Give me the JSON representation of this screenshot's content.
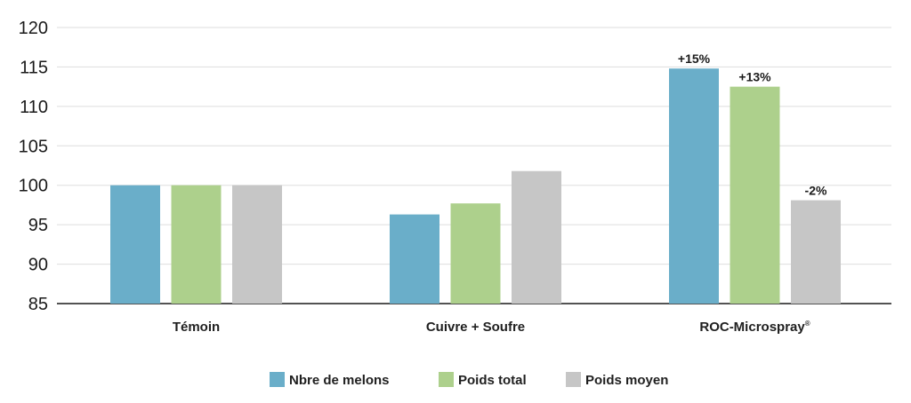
{
  "chart_data": {
    "type": "bar",
    "title": "",
    "xlabel": "",
    "ylabel": "",
    "categories": [
      "Témoin",
      "Cuivre + Soufre",
      "ROC-Microspray"
    ],
    "category_superscripts": [
      "",
      "",
      "®"
    ],
    "ylim": [
      85,
      120
    ],
    "yticks": [
      85,
      90,
      95,
      100,
      105,
      110,
      115,
      120
    ],
    "grid": true,
    "legend_position": "bottom",
    "series": [
      {
        "name": "Nbre de melons",
        "color": "#6aaec9",
        "values": [
          100,
          96.3,
          114.8
        ],
        "labels": [
          "",
          "",
          "+15%"
        ]
      },
      {
        "name": "Poids total",
        "color": "#add08c",
        "values": [
          100,
          97.7,
          112.5
        ],
        "labels": [
          "",
          "",
          "+13%"
        ]
      },
      {
        "name": "Poids moyen",
        "color": "#c6c6c6",
        "values": [
          100,
          101.8,
          98.1
        ],
        "labels": [
          "",
          "",
          "-2%"
        ]
      }
    ]
  }
}
